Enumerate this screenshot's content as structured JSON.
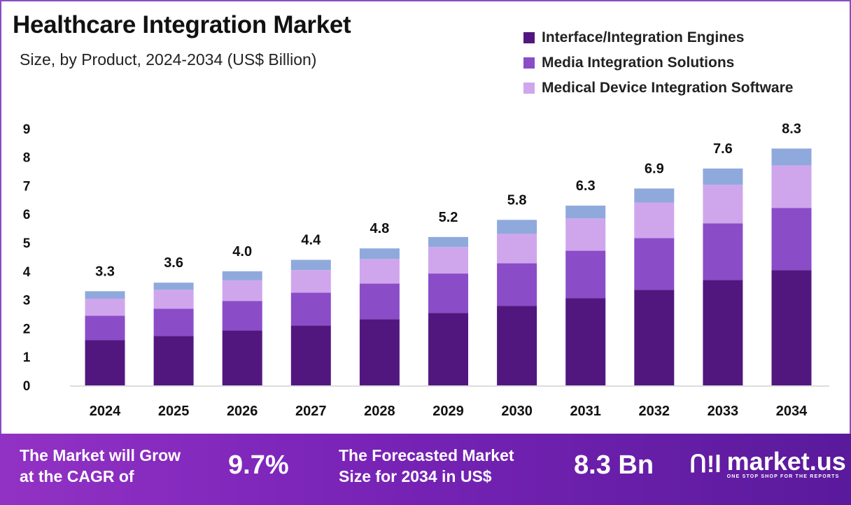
{
  "header": {
    "title": "Healthcare Integration Market",
    "subtitle": "Size, by Product, 2024-2034 (US$ Billion)"
  },
  "chart_data": {
    "type": "bar",
    "stacked": true,
    "title": "Healthcare Integration Market",
    "subtitle": "Size, by Product, 2024-2034 (US$ Billion)",
    "categories": [
      "2024",
      "2025",
      "2026",
      "2027",
      "2028",
      "2029",
      "2030",
      "2031",
      "2032",
      "2033",
      "2034"
    ],
    "series": [
      {
        "name": "Interface/Integration Engines",
        "color": "#52177f",
        "values": [
          1.59,
          1.73,
          1.93,
          2.1,
          2.32,
          2.54,
          2.79,
          3.06,
          3.35,
          3.69,
          4.04
        ]
      },
      {
        "name": "Media Integration Solutions",
        "color": "#8b4cc8",
        "values": [
          0.85,
          0.96,
          1.03,
          1.15,
          1.25,
          1.38,
          1.49,
          1.66,
          1.81,
          1.99,
          2.18
        ]
      },
      {
        "name": "Medical Device Integration Software",
        "color": "#cfa6ec",
        "values": [
          0.6,
          0.66,
          0.72,
          0.79,
          0.86,
          0.93,
          1.03,
          1.13,
          1.25,
          1.35,
          1.49
        ]
      },
      {
        "name": "",
        "color": "#8fa9dc",
        "values": [
          0.26,
          0.25,
          0.32,
          0.36,
          0.37,
          0.35,
          0.49,
          0.45,
          0.49,
          0.57,
          0.59
        ]
      }
    ],
    "totals": [
      "3.3",
      "3.6",
      "4.0",
      "4.4",
      "4.8",
      "5.2",
      "5.8",
      "6.3",
      "6.9",
      "7.6",
      "8.3"
    ],
    "yticks": [
      "0",
      "1",
      "2",
      "3",
      "4",
      "5",
      "6",
      "7",
      "8",
      "9"
    ],
    "ylim": [
      0,
      9
    ],
    "xlabel": "",
    "ylabel": "",
    "grid": false,
    "legend_position": "top-right"
  },
  "footer": {
    "cagr_label": "The Market will Grow at the CAGR of",
    "cagr_line1": "The Market will Grow",
    "cagr_line2": "at the CAGR of",
    "cagr_value": "9.7%",
    "forecast_line1": "The Forecasted Market",
    "forecast_line2": "Size for 2034 in US$",
    "forecast_value": "8.3 Bn",
    "brand": "market.us",
    "tagline": "ONE STOP SHOP FOR THE REPORTS"
  }
}
